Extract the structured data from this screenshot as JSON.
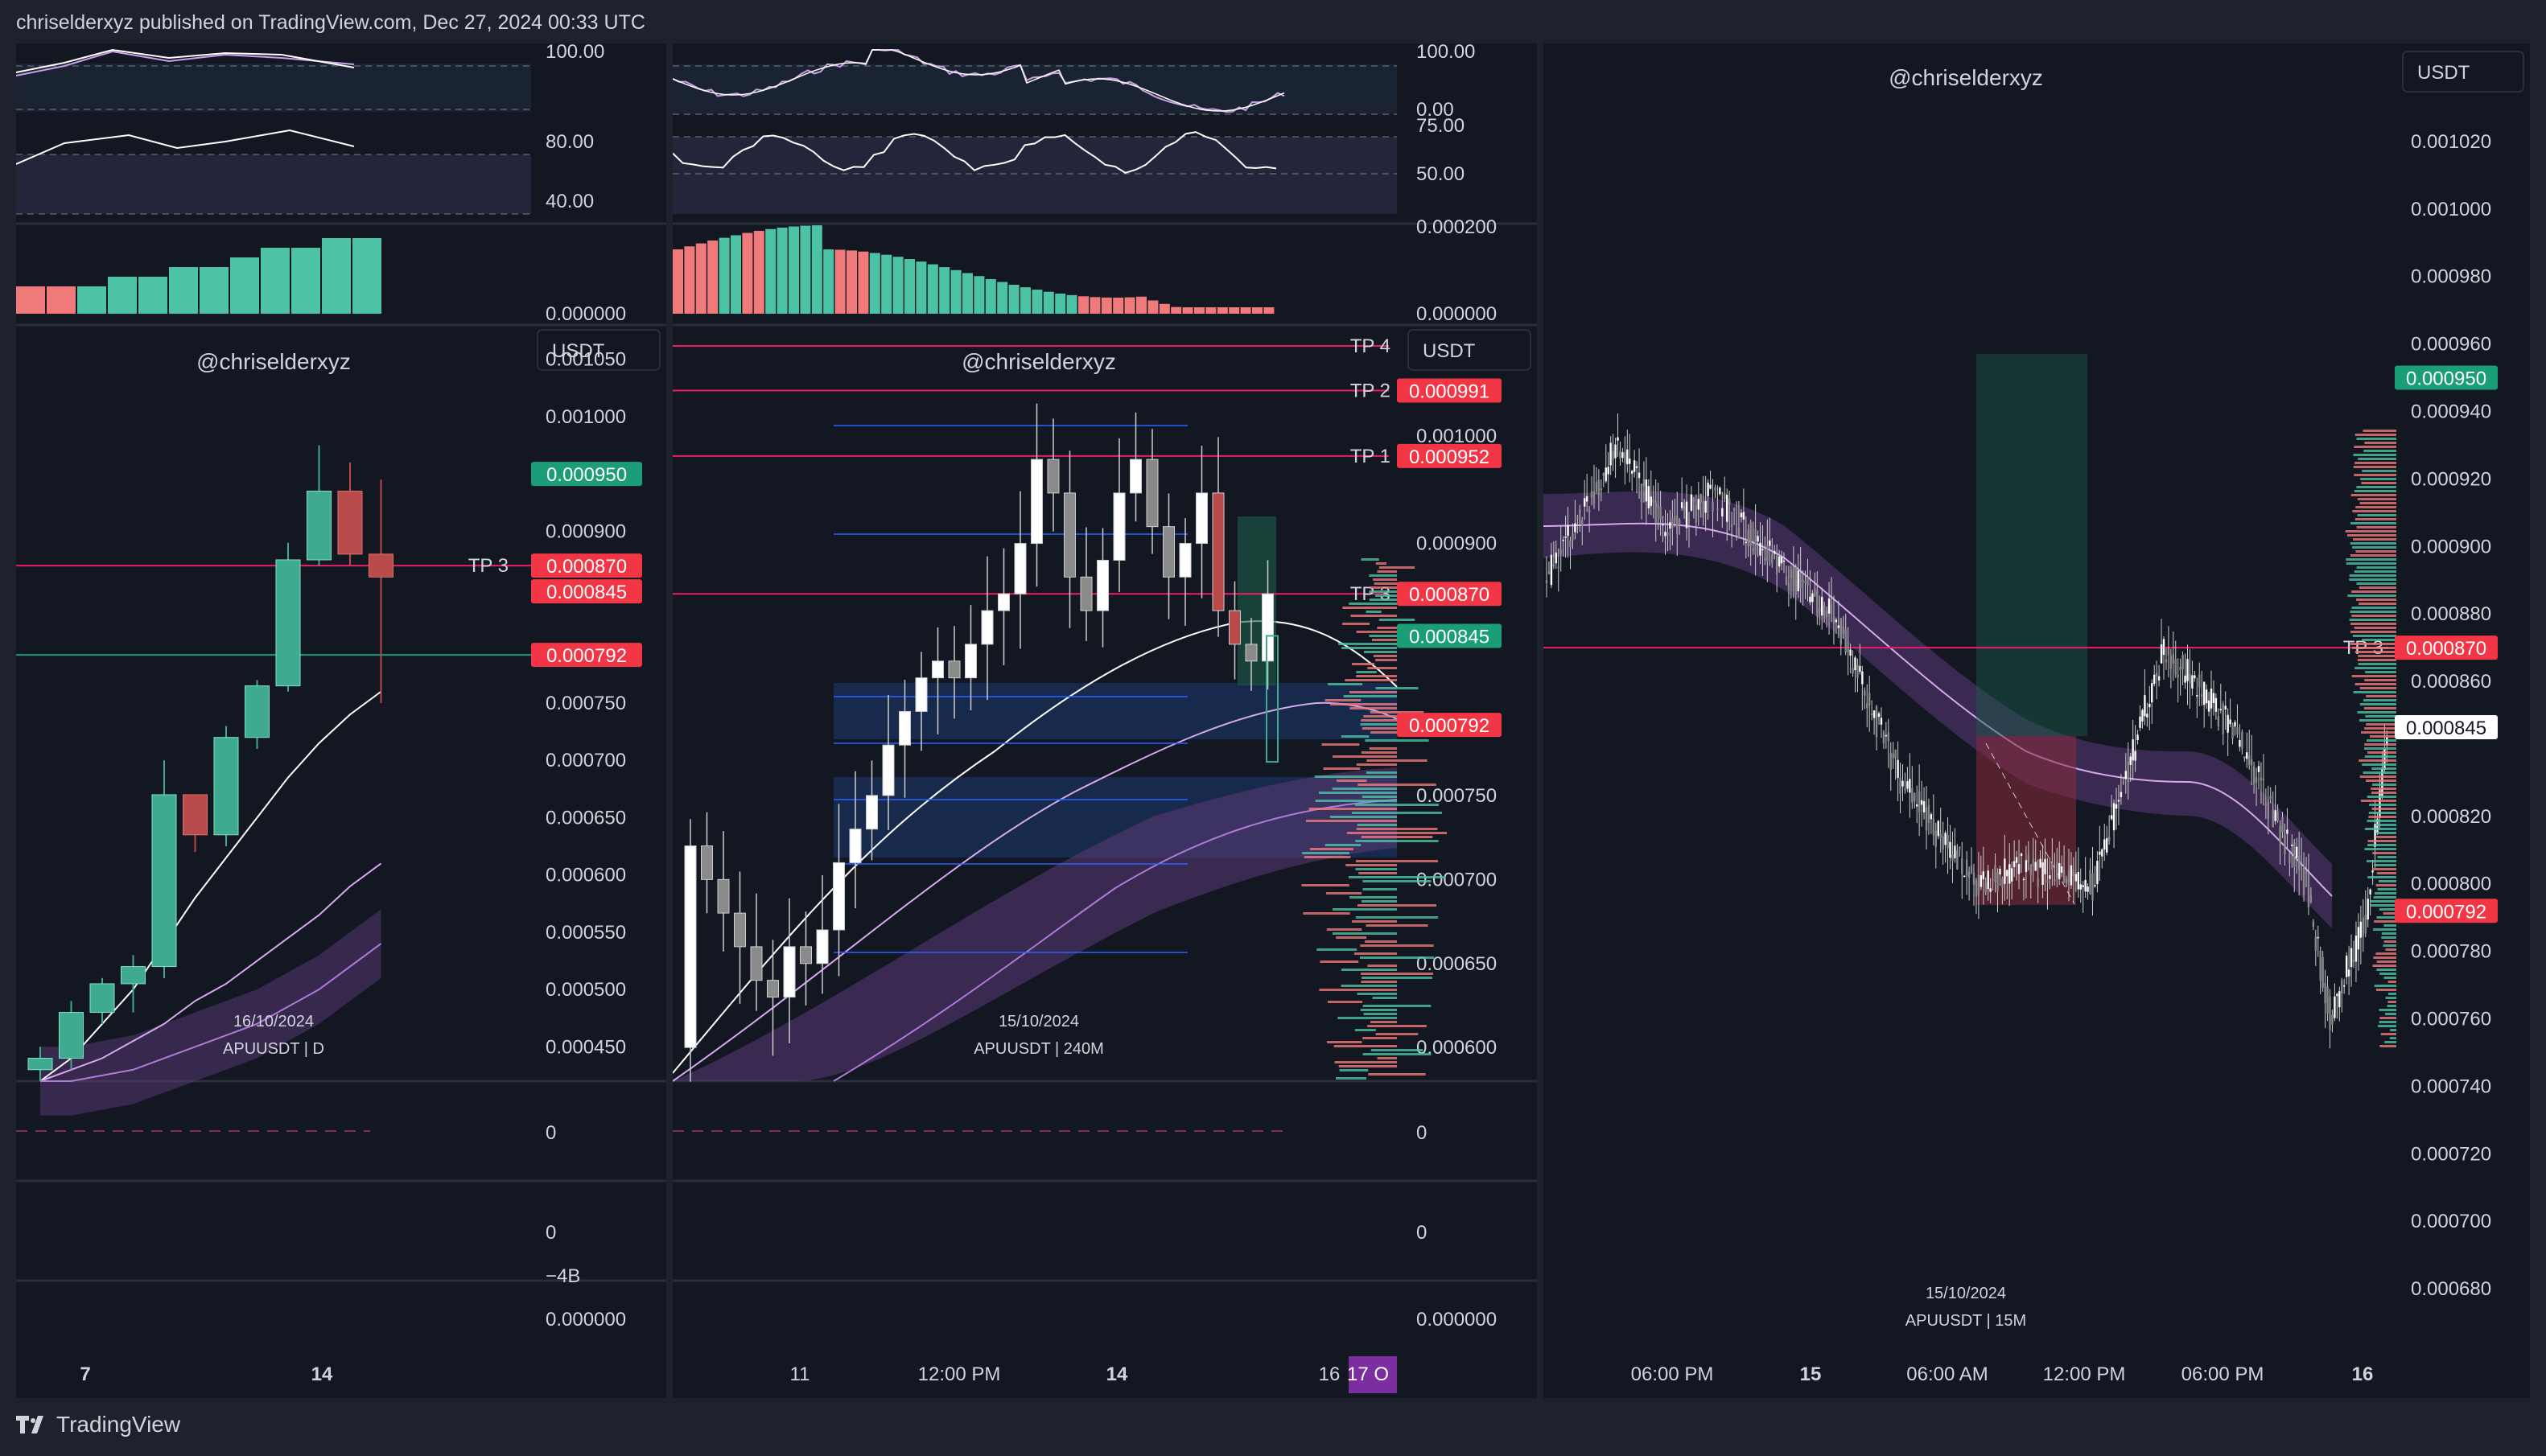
{
  "header": {
    "published": "chriselderxyz published on TradingView.com, Dec 27, 2024 00:33 UTC"
  },
  "footer": {
    "brand": "TradingView",
    "logo_icon": "tradingview-logo-icon"
  },
  "colors": {
    "bg": "#131722",
    "frame": "#1e222d",
    "up": "#3faa90",
    "down": "#b84a4a",
    "white_candle": "#e8e8e8",
    "grey_candle": "#8a8a8a",
    "tp_line": "#e91e63",
    "green_label": "#1b9e77",
    "red_label": "#f23645",
    "purple_band": "#5b3a78",
    "volume_up": "#4dc3a5",
    "volume_down": "#f07a7a"
  },
  "chart_data": [
    {
      "id": "daily",
      "type": "candlestick",
      "watermark": "@chriselderxyz",
      "currency": "USDT",
      "date_label": "16/10/2024",
      "symbol_label": "APUUSDT | D",
      "ylim": [
        0.00042,
        0.00108
      ],
      "y_ticks": [
        "0.001050",
        "0.001000",
        "0.000900",
        "0.000750",
        "0.000700",
        "0.000650",
        "0.000600",
        "0.000550",
        "0.000500",
        "0.000450"
      ],
      "x_ticks": [
        "7",
        "14"
      ],
      "tp_lines": [
        {
          "label": "TP 3",
          "price": 0.00087
        }
      ],
      "price_labels": [
        {
          "text": "0.000950",
          "price": 0.00095,
          "color": "green"
        },
        {
          "text": "0.000870",
          "price": 0.00087,
          "color": "red"
        },
        {
          "text": "0.000845",
          "price": 0.000845,
          "color": "red"
        },
        {
          "text": "0.000792",
          "price": 0.000792,
          "color": "red"
        }
      ],
      "candles": [
        {
          "o": 0.00043,
          "h": 0.00045,
          "l": 0.00042,
          "c": 0.00044
        },
        {
          "o": 0.00044,
          "h": 0.00049,
          "l": 0.00043,
          "c": 0.00048
        },
        {
          "o": 0.00048,
          "h": 0.00051,
          "l": 0.00047,
          "c": 0.000505
        },
        {
          "o": 0.000505,
          "h": 0.00053,
          "l": 0.00048,
          "c": 0.00052
        },
        {
          "o": 0.00052,
          "h": 0.0007,
          "l": 0.00051,
          "c": 0.00067
        },
        {
          "o": 0.00067,
          "h": 0.00067,
          "l": 0.00062,
          "c": 0.000635
        },
        {
          "o": 0.000635,
          "h": 0.00073,
          "l": 0.000625,
          "c": 0.00072
        },
        {
          "o": 0.00072,
          "h": 0.00077,
          "l": 0.00071,
          "c": 0.000765
        },
        {
          "o": 0.000765,
          "h": 0.00089,
          "l": 0.00076,
          "c": 0.000875
        },
        {
          "o": 0.000875,
          "h": 0.000975,
          "l": 0.00087,
          "c": 0.000935
        },
        {
          "o": 0.000935,
          "h": 0.00096,
          "l": 0.00087,
          "c": 0.00088
        },
        {
          "o": 0.00088,
          "h": 0.000945,
          "l": 0.00075,
          "c": 0.00086
        }
      ],
      "ma_lines": [
        [
          0.00042,
          0.00044,
          0.00047,
          0.0005,
          0.00054,
          0.00058,
          0.000615,
          0.00065,
          0.000685,
          0.000715,
          0.00074,
          0.00076
        ],
        [
          0.00042,
          0.00043,
          0.00044,
          0.000455,
          0.00047,
          0.00049,
          0.000505,
          0.000525,
          0.000545,
          0.000565,
          0.00059,
          0.00061
        ],
        [
          0.00042,
          0.00042,
          0.000425,
          0.00043,
          0.00044,
          0.00045,
          0.00046,
          0.00047,
          0.000485,
          0.0005,
          0.00052,
          0.00054
        ]
      ],
      "rsi_labels": [
        "100.00"
      ],
      "stoch_labels": [
        "80.00",
        "40.00"
      ],
      "volume_label": "0.000000",
      "volume": [
        2,
        2,
        2,
        3,
        3,
        4,
        4,
        5,
        6,
        6,
        7,
        7
      ],
      "volume_dir": [
        "d",
        "d",
        "u",
        "u",
        "u",
        "u",
        "u",
        "u",
        "u",
        "u",
        "u",
        "u"
      ],
      "macd_label": "0",
      "osc_labels": [
        "0",
        "−4B"
      ],
      "bottom_label": "0.000000"
    },
    {
      "id": "h4",
      "type": "candlestick",
      "watermark": "@chriselderxyz",
      "currency": "USDT",
      "date_label": "15/10/2024",
      "symbol_label": "APUUSDT | 240M",
      "ylim": [
        0.00058,
        0.00103
      ],
      "y_ticks": [
        "0.000900",
        "0.000750",
        "0.000700",
        "0.000650",
        "0.000600"
      ],
      "x_ticks": [
        "11",
        "12:00 PM",
        "14",
        "16"
      ],
      "x_highlight": "17 O",
      "tp_lines": [
        {
          "label": "TP 4",
          "price": 0.00102
        },
        {
          "label": "TP 2",
          "price": 0.000991
        },
        {
          "label": "TP 1",
          "price": 0.000952
        },
        {
          "label": "TP 3",
          "price": 0.00087
        }
      ],
      "price_labels": [
        {
          "text": "0.000991",
          "price": 0.000991,
          "color": "red"
        },
        {
          "text": "0.000952",
          "price": 0.000952,
          "color": "red"
        },
        {
          "text": "0.000870",
          "price": 0.00087,
          "color": "red"
        },
        {
          "text": "0.000845",
          "price": 0.000845,
          "color": "green"
        },
        {
          "text": "0.000792",
          "price": 0.000792,
          "color": "red"
        }
      ],
      "rsi_labels": [
        "100.00",
        "0.00"
      ],
      "stoch_labels": [
        "75.00",
        "50.00"
      ],
      "volume_label": "0.000000",
      "macd_label": "0",
      "osc_labels": [
        "0"
      ],
      "bottom_label": "0.000000"
    },
    {
      "id": "m15",
      "type": "candlestick",
      "watermark": "@chriselderxyz",
      "currency": "USDT",
      "date_label": "15/10/2024",
      "symbol_label": "APUUSDT | 15M",
      "ylim": [
        0.00067,
        0.00103
      ],
      "y_ticks": [
        "0.001020",
        "0.001000",
        "0.000980",
        "0.000960",
        "0.000940",
        "0.000920",
        "0.000900",
        "0.000880",
        "0.000860",
        "0.000820",
        "0.000800",
        "0.000780",
        "0.000760",
        "0.000740",
        "0.000720",
        "0.000700",
        "0.000680"
      ],
      "x_ticks": [
        "06:00 PM",
        "15",
        "06:00 AM",
        "12:00 PM",
        "06:00 PM",
        "16"
      ],
      "tp_lines": [
        {
          "label": "TP 3",
          "price": 0.00087
        }
      ],
      "price_labels": [
        {
          "text": "0.000950",
          "price": 0.00095,
          "color": "green"
        },
        {
          "text": "0.000870",
          "price": 0.00087,
          "color": "red"
        },
        {
          "text": "0.000845",
          "price": 0.000845,
          "color": "white"
        },
        {
          "text": "0.000792",
          "price": 0.000792,
          "color": "red"
        }
      ]
    }
  ]
}
